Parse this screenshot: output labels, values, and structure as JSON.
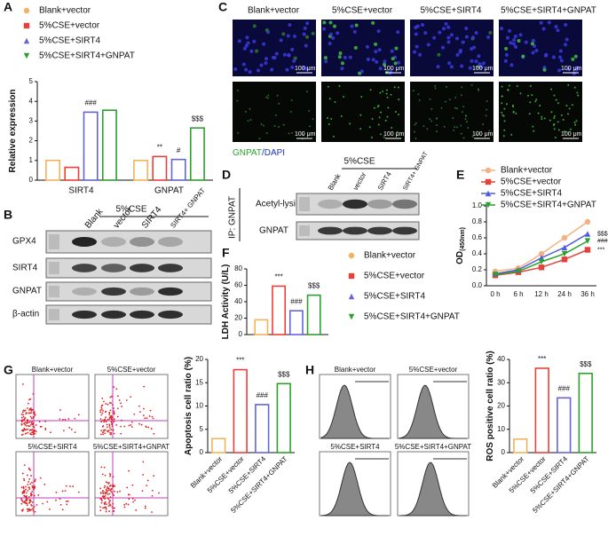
{
  "panel_letters": [
    "A",
    "B",
    "C",
    "D",
    "E",
    "F",
    "G",
    "H"
  ],
  "panel_B": {
    "group": "5%CSE",
    "lanes": [
      "Blank",
      "vector",
      "SIRT4",
      "SIRT4+ GNPAT"
    ],
    "rows": [
      "GPX4",
      "SIRT4",
      "GNPAT",
      "β-actin"
    ]
  },
  "panel_C": {
    "columns": [
      "Blank+vector",
      "5%CSE+vector",
      "5%CSE+SIRT4",
      "5%CSE+SIRT4+GNPAT"
    ],
    "scale_bar": "100 μm",
    "stain_green": "GNPAT",
    "stain_blue": "/DAPI"
  },
  "panel_D": {
    "group": "5%CSE",
    "lanes": [
      "Blank",
      "vector",
      "SIRT4",
      "SIRT4+ GNPAT"
    ],
    "ip": "IP: GNPAT",
    "rows": [
      "Acetyl-lysine",
      "GNPAT"
    ]
  },
  "panel_G": {
    "plots": [
      "Blank+vector",
      "5%CSE+vector",
      "5%CSE+SIRT4",
      "5%CSE+SIRT4+GNPAT"
    ]
  },
  "panel_H": {
    "plots": [
      "Blank+vector",
      "5%CSE+vector",
      "5%CSE+SIRT4",
      "5%CSE+SIRT4+GNPAT"
    ]
  },
  "chart_data": [
    {
      "type": "bar",
      "ylabel": "Relative expression",
      "categories": [
        "SIRT4",
        "GNPAT"
      ],
      "series": [
        {
          "name": "Blank+vector",
          "color": "#f0b45c",
          "values": [
            1.0,
            1.0
          ]
        },
        {
          "name": "5%CSE+vector",
          "color": "#e8413a",
          "values": [
            0.65,
            1.2
          ],
          "annotations": [
            null,
            "**"
          ]
        },
        {
          "name": "5%CSE+SIRT4",
          "color": "#6464dc",
          "values": [
            3.45,
            1.05
          ],
          "annotations": [
            "###",
            "#"
          ]
        },
        {
          "name": "5%CSE+SIRT4+GNPAT",
          "color": "#2ca02c",
          "values": [
            3.55,
            2.65
          ],
          "annotations": [
            null,
            "$$$"
          ]
        }
      ],
      "ylim": [
        0,
        5
      ],
      "yticks": [
        0,
        1,
        2,
        3,
        4,
        5
      ],
      "legend": true
    },
    {
      "type": "line",
      "ylabel": "OD",
      "ylabel_sub": "(450nm)",
      "categories": [
        "0 h",
        "6 h",
        "12 h",
        "24 h",
        "36 h"
      ],
      "series": [
        {
          "name": "Blank+vector",
          "color": "#f4b183",
          "values": [
            0.18,
            0.22,
            0.4,
            0.6,
            0.8
          ]
        },
        {
          "name": "5%CSE+vector",
          "color": "#e8413a",
          "values": [
            0.13,
            0.17,
            0.23,
            0.33,
            0.45
          ],
          "end_annotation": "***"
        },
        {
          "name": "5%CSE+SIRT4",
          "color": "#4f5be0",
          "values": [
            0.15,
            0.2,
            0.35,
            0.48,
            0.65
          ],
          "end_annotation": "$$$"
        },
        {
          "name": "5%CSE+SIRT4+GNPAT",
          "color": "#2ca02c",
          "values": [
            0.14,
            0.18,
            0.3,
            0.4,
            0.56
          ],
          "end_annotation": "###"
        }
      ],
      "ylim": [
        0,
        1
      ],
      "yticks": [
        {
          "value": 0,
          "label": "0.0"
        },
        0.2,
        0.4,
        0.6,
        0.8,
        {
          "value": 1,
          "label": "1.0"
        }
      ],
      "legend": true
    },
    {
      "type": "bar",
      "ylabel": "LDH Activity (U/L)",
      "series": [
        {
          "name": "Blank+vector",
          "color": "#f0b45c",
          "values": [
            18
          ]
        },
        {
          "name": "5%CSE+vector",
          "color": "#e8413a",
          "values": [
            59
          ],
          "annotations": [
            "***"
          ]
        },
        {
          "name": "5%CSE+SIRT4",
          "color": "#6464dc",
          "values": [
            29
          ],
          "annotations": [
            "###"
          ]
        },
        {
          "name": "5%CSE+SIRT4+GNPAT",
          "color": "#2ca02c",
          "values": [
            48
          ],
          "annotations": [
            "$$$"
          ]
        }
      ],
      "ylim": [
        0,
        80
      ],
      "yticks": [
        0,
        20,
        40,
        60,
        80
      ],
      "legend": true
    },
    {
      "type": "bar",
      "ylabel": "Apoptosis cell ratio (%)",
      "categories": [
        "Blank+vector",
        "5%CSE+vector",
        "5%CSE+SIRT4",
        "5%CSE+SIRT4+GNPAT"
      ],
      "values": [
        3,
        17.8,
        10.3,
        14.8
      ],
      "colors": [
        "#f0b45c",
        "#e8413a",
        "#6464dc",
        "#2ca02c"
      ],
      "annotations": [
        null,
        "***",
        "###",
        "$$$"
      ],
      "ylim": [
        0,
        20
      ],
      "yticks": [
        0,
        5,
        10,
        15,
        20
      ]
    },
    {
      "type": "bar",
      "ylabel": "ROS positive cell ratio (%)",
      "categories": [
        "Blank+vector",
        "5%CSE+vector",
        "5%CSE+SIRT4",
        "5%CSE+SIRT4+GNPAT"
      ],
      "values": [
        5.8,
        36.2,
        23.5,
        34
      ],
      "colors": [
        "#f0b45c",
        "#e8413a",
        "#6464dc",
        "#2ca02c"
      ],
      "annotations": [
        null,
        "***",
        "###",
        "$$$"
      ],
      "ylim": [
        0,
        40
      ],
      "yticks": [
        0,
        10,
        20,
        30,
        40
      ]
    }
  ]
}
